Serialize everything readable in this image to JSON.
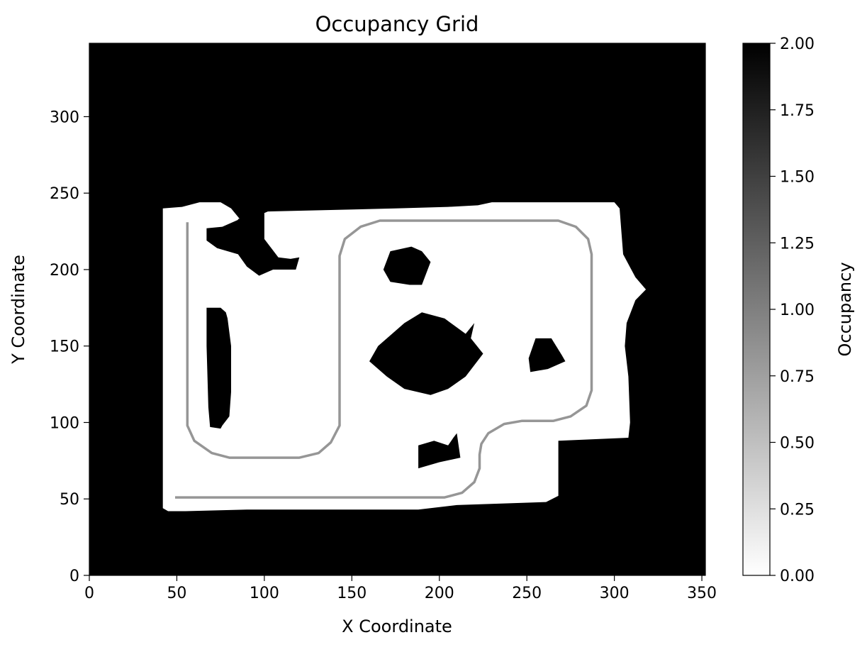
{
  "chart_data": {
    "type": "heatmap",
    "title": "Occupancy Grid",
    "xlabel": "X Coordinate",
    "ylabel": "Y Coordinate",
    "xlim": [
      0,
      352
    ],
    "ylim": [
      0,
      348
    ],
    "x_ticks": [
      0,
      50,
      100,
      150,
      200,
      250,
      300,
      350
    ],
    "y_ticks": [
      0,
      50,
      100,
      150,
      200,
      250,
      300
    ],
    "grid": false,
    "colormap": "gray_r",
    "colorbar": {
      "label": "Occupancy",
      "range": [
        0,
        2
      ],
      "ticks": [
        "0.00",
        "0.25",
        "0.50",
        "0.75",
        "1.00",
        "1.25",
        "1.50",
        "1.75",
        "2.00"
      ]
    },
    "occupied_value": 2,
    "free_value": 0,
    "path_value": 1,
    "free_region": [
      [
        42,
        240
      ],
      [
        53,
        241
      ],
      [
        63,
        244
      ],
      [
        75,
        244
      ],
      [
        81,
        240
      ],
      [
        86,
        233
      ],
      [
        76,
        228
      ],
      [
        67,
        227
      ],
      [
        67,
        219
      ],
      [
        73,
        214
      ],
      [
        85,
        210
      ],
      [
        90,
        232
      ],
      [
        102,
        238
      ],
      [
        140,
        239
      ],
      [
        175,
        240
      ],
      [
        205,
        241
      ],
      [
        222,
        242
      ],
      [
        230,
        244
      ],
      [
        300,
        244
      ],
      [
        303,
        240
      ],
      [
        304,
        225
      ],
      [
        305,
        210
      ],
      [
        312,
        195
      ],
      [
        318,
        187
      ],
      [
        312,
        180
      ],
      [
        307,
        165
      ],
      [
        306,
        150
      ],
      [
        308,
        130
      ],
      [
        309,
        100
      ],
      [
        308,
        90
      ],
      [
        268,
        88
      ],
      [
        268,
        52
      ],
      [
        261,
        48
      ],
      [
        210,
        46
      ],
      [
        188,
        43
      ],
      [
        90,
        43
      ],
      [
        55,
        42
      ],
      [
        45,
        42
      ],
      [
        42,
        44
      ],
      [
        42,
        100
      ]
    ],
    "obstacles": [
      [
        [
          85,
          233
        ],
        [
          100,
          237
        ],
        [
          100,
          220
        ],
        [
          108,
          208
        ],
        [
          115,
          207
        ],
        [
          120,
          208
        ],
        [
          118,
          200
        ],
        [
          105,
          200
        ],
        [
          97,
          196
        ],
        [
          90,
          202
        ],
        [
          85,
          210
        ]
      ],
      [
        [
          67,
          175
        ],
        [
          72,
          175
        ],
        [
          75,
          175
        ],
        [
          78,
          172
        ],
        [
          79,
          168
        ],
        [
          81,
          150
        ],
        [
          81,
          120
        ],
        [
          80,
          104
        ],
        [
          76,
          98
        ],
        [
          75,
          96
        ],
        [
          69,
          97
        ],
        [
          68,
          110
        ],
        [
          67,
          150
        ]
      ],
      [
        [
          168,
          200
        ],
        [
          172,
          212
        ],
        [
          184,
          215
        ],
        [
          190,
          212
        ],
        [
          195,
          205
        ],
        [
          190,
          190
        ],
        [
          183,
          190
        ],
        [
          172,
          192
        ]
      ],
      [
        [
          160,
          140
        ],
        [
          165,
          150
        ],
        [
          173,
          158
        ],
        [
          180,
          165
        ],
        [
          190,
          172
        ],
        [
          203,
          168
        ],
        [
          215,
          158
        ],
        [
          220,
          165
        ],
        [
          218,
          155
        ],
        [
          225,
          145
        ],
        [
          215,
          130
        ],
        [
          205,
          122
        ],
        [
          195,
          118
        ],
        [
          180,
          122
        ],
        [
          170,
          130
        ]
      ],
      [
        [
          251,
          142
        ],
        [
          255,
          155
        ],
        [
          264,
          155
        ],
        [
          270,
          144
        ],
        [
          272,
          140
        ],
        [
          262,
          135
        ],
        [
          252,
          133
        ]
      ],
      [
        [
          188,
          70
        ],
        [
          188,
          85
        ],
        [
          197,
          88
        ],
        [
          205,
          85
        ],
        [
          208,
          90
        ],
        [
          210,
          93
        ],
        [
          212,
          77
        ],
        [
          200,
          74
        ]
      ]
    ],
    "path": [
      [
        56,
        231
      ],
      [
        56,
        98
      ],
      [
        60,
        88
      ],
      [
        70,
        80
      ],
      [
        80,
        77
      ],
      [
        120,
        77
      ],
      [
        131,
        80
      ],
      [
        138,
        87
      ],
      [
        143,
        98
      ],
      [
        143,
        209
      ],
      [
        146,
        220
      ],
      [
        155,
        228
      ],
      [
        166,
        232
      ],
      [
        268,
        232
      ],
      [
        278,
        228
      ],
      [
        285,
        220
      ],
      [
        287,
        210
      ],
      [
        287,
        121
      ],
      [
        284,
        111
      ],
      [
        275,
        104
      ],
      [
        265,
        101
      ],
      [
        247,
        101
      ],
      [
        237,
        99
      ],
      [
        228,
        93
      ],
      [
        224,
        86
      ],
      [
        223,
        79
      ],
      [
        223,
        70
      ],
      [
        220,
        61
      ],
      [
        213,
        54
      ],
      [
        203,
        51
      ],
      [
        49,
        51
      ]
    ]
  }
}
